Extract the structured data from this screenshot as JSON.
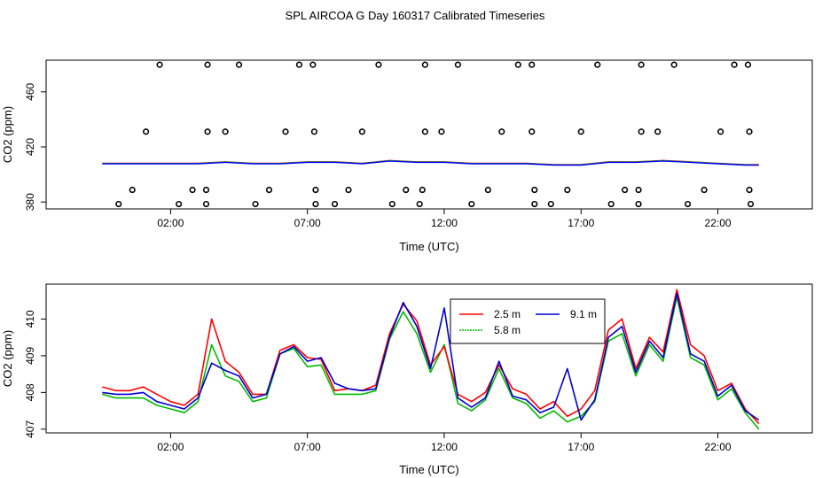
{
  "title": "SPL AIRCOA G  Day 160317  Calibrated Timeseries",
  "chart_data": [
    {
      "type": "scatter+line",
      "xlabel": "Time (UTC)",
      "ylabel": "CO2 (ppm)",
      "xlim": [
        -2.55,
        25.45
      ],
      "ylim": [
        375,
        483
      ],
      "xticks": [
        2,
        7,
        12,
        17,
        22
      ],
      "xtick_labels": [
        "02:00",
        "07:00",
        "12:00",
        "17:00",
        "22:00"
      ],
      "yticks": [
        380,
        420,
        460
      ],
      "ytick_labels": [
        "380",
        "420",
        "460"
      ],
      "points": [
        {
          "x": 0.1,
          "y": 378.5
        },
        {
          "x": 0.6,
          "y": 388.8
        },
        {
          "x": 1.1,
          "y": 431.1
        },
        {
          "x": 1.6,
          "y": 479.7
        },
        {
          "x": 2.3,
          "y": 378.5
        },
        {
          "x": 2.8,
          "y": 388.8
        },
        {
          "x": 3.3,
          "y": 378.5
        },
        {
          "x": 3.3,
          "y": 388.8
        },
        {
          "x": 3.35,
          "y": 431.1
        },
        {
          "x": 3.35,
          "y": 479.7
        },
        {
          "x": 4.0,
          "y": 431.1
        },
        {
          "x": 4.5,
          "y": 479.7
        },
        {
          "x": 5.1,
          "y": 378.5
        },
        {
          "x": 5.6,
          "y": 388.8
        },
        {
          "x": 6.2,
          "y": 431.1
        },
        {
          "x": 6.7,
          "y": 479.7
        },
        {
          "x": 7.2,
          "y": 479.7
        },
        {
          "x": 7.25,
          "y": 431.1
        },
        {
          "x": 7.3,
          "y": 388.8
        },
        {
          "x": 7.3,
          "y": 378.5
        },
        {
          "x": 8.0,
          "y": 378.5
        },
        {
          "x": 8.5,
          "y": 388.8
        },
        {
          "x": 9.0,
          "y": 431.1
        },
        {
          "x": 9.6,
          "y": 479.7
        },
        {
          "x": 10.1,
          "y": 378.5
        },
        {
          "x": 10.6,
          "y": 388.8
        },
        {
          "x": 11.2,
          "y": 388.8
        },
        {
          "x": 11.1,
          "y": 378.5
        },
        {
          "x": 11.3,
          "y": 431.1
        },
        {
          "x": 11.3,
          "y": 479.7
        },
        {
          "x": 11.9,
          "y": 431.1
        },
        {
          "x": 12.5,
          "y": 479.7
        },
        {
          "x": 13.0,
          "y": 378.5
        },
        {
          "x": 13.6,
          "y": 388.8
        },
        {
          "x": 14.1,
          "y": 431.1
        },
        {
          "x": 14.7,
          "y": 479.7
        },
        {
          "x": 15.2,
          "y": 479.7
        },
        {
          "x": 15.2,
          "y": 431.1
        },
        {
          "x": 15.3,
          "y": 388.8
        },
        {
          "x": 15.3,
          "y": 378.5
        },
        {
          "x": 15.9,
          "y": 378.5
        },
        {
          "x": 16.5,
          "y": 388.8
        },
        {
          "x": 17.0,
          "y": 431.1
        },
        {
          "x": 17.6,
          "y": 479.7
        },
        {
          "x": 18.1,
          "y": 378.5
        },
        {
          "x": 18.6,
          "y": 388.8
        },
        {
          "x": 19.1,
          "y": 388.8
        },
        {
          "x": 19.1,
          "y": 378.5
        },
        {
          "x": 19.2,
          "y": 431.1
        },
        {
          "x": 19.2,
          "y": 479.7
        },
        {
          "x": 19.8,
          "y": 431.1
        },
        {
          "x": 20.4,
          "y": 479.7
        },
        {
          "x": 20.9,
          "y": 378.5
        },
        {
          "x": 21.5,
          "y": 388.8
        },
        {
          "x": 22.1,
          "y": 431.1
        },
        {
          "x": 22.6,
          "y": 479.7
        },
        {
          "x": 23.1,
          "y": 479.7
        },
        {
          "x": 23.15,
          "y": 431.1
        },
        {
          "x": 23.15,
          "y": 388.8
        },
        {
          "x": 23.2,
          "y": 378.5
        }
      ],
      "line_x": [
        -0.5,
        0,
        1,
        2,
        3,
        4,
        5,
        6,
        7,
        8,
        9,
        10,
        11,
        12,
        13,
        14,
        15,
        16,
        17,
        18,
        19,
        20,
        21,
        22,
        23,
        23.5
      ],
      "line_y": [
        408,
        408,
        408,
        408,
        408,
        409,
        408,
        408,
        409,
        409,
        408,
        410,
        409,
        409,
        408,
        408,
        408,
        407,
        407,
        409,
        409,
        410,
        409,
        408,
        407,
        407
      ],
      "line_colors": [
        "#ff0000",
        "#00cc00",
        "#0000ff"
      ]
    },
    {
      "type": "line",
      "xlabel": "Time (UTC)",
      "ylabel": "CO2 (ppm)",
      "xlim": [
        -2.55,
        25.45
      ],
      "ylim": [
        406.9,
        410.95
      ],
      "xticks": [
        2,
        7,
        12,
        17,
        22
      ],
      "xtick_labels": [
        "02:00",
        "07:00",
        "12:00",
        "17:00",
        "22:00"
      ],
      "yticks": [
        407,
        408,
        409,
        410
      ],
      "ytick_labels": [
        "407",
        "408",
        "409",
        "410"
      ],
      "legend": {
        "position": "top-center",
        "entries": [
          "2.5 m",
          "9.1 m",
          "5.8 m"
        ]
      },
      "x": [
        -0.5,
        0,
        0.5,
        1,
        1.5,
        2,
        2.5,
        3,
        3.5,
        4,
        4.5,
        5,
        5.5,
        6,
        6.5,
        7,
        7.5,
        8,
        8.5,
        9,
        9.5,
        10,
        10.5,
        11,
        11.5,
        12,
        12.5,
        13,
        13.5,
        14,
        14.5,
        15,
        15.5,
        16,
        16.5,
        17,
        17.5,
        18,
        18.5,
        19,
        19.5,
        20,
        20.5,
        21,
        21.5,
        22,
        22.5,
        23,
        23.5
      ],
      "series": [
        {
          "name": "2.5 m",
          "color": "#ff0000",
          "values": [
            408.15,
            408.05,
            408.05,
            408.15,
            407.95,
            407.75,
            407.65,
            407.95,
            410.0,
            408.85,
            408.55,
            407.95,
            407.95,
            409.15,
            409.3,
            408.95,
            408.9,
            408.05,
            408.1,
            408.05,
            408.2,
            409.6,
            410.4,
            409.95,
            408.75,
            409.25,
            407.95,
            407.75,
            408.0,
            408.75,
            408.1,
            407.95,
            407.55,
            407.75,
            407.35,
            407.55,
            408.05,
            409.7,
            410.0,
            408.65,
            409.5,
            409.1,
            410.8,
            409.3,
            409.0,
            408.05,
            408.25,
            407.55,
            407.15
          ]
        },
        {
          "name": "5.8 m",
          "color": "#00bb00",
          "values": [
            407.95,
            407.85,
            407.85,
            407.85,
            407.65,
            407.55,
            407.45,
            407.75,
            409.3,
            408.45,
            408.3,
            407.75,
            407.85,
            409.05,
            409.2,
            408.7,
            408.75,
            407.95,
            407.95,
            407.95,
            408.05,
            409.45,
            410.2,
            409.6,
            408.55,
            409.3,
            407.7,
            407.5,
            407.8,
            408.65,
            407.85,
            407.7,
            407.3,
            407.5,
            407.2,
            407.35,
            407.75,
            409.4,
            409.6,
            408.45,
            409.3,
            408.85,
            410.6,
            408.95,
            408.75,
            407.8,
            408.1,
            407.45,
            407.0
          ]
        },
        {
          "name": "9.1 m",
          "color": "#0000cc",
          "values": [
            408.0,
            407.95,
            407.95,
            408.0,
            407.75,
            407.65,
            407.55,
            407.85,
            408.8,
            408.6,
            408.45,
            407.85,
            407.95,
            409.05,
            409.25,
            408.85,
            408.95,
            408.25,
            408.1,
            408.05,
            408.1,
            409.5,
            410.45,
            409.8,
            408.65,
            410.3,
            407.85,
            407.6,
            407.85,
            408.85,
            407.9,
            407.8,
            407.45,
            407.6,
            408.65,
            407.25,
            407.8,
            409.5,
            409.8,
            408.55,
            409.4,
            408.95,
            410.7,
            409.05,
            408.85,
            407.9,
            408.2,
            407.5,
            407.25
          ]
        }
      ]
    }
  ]
}
